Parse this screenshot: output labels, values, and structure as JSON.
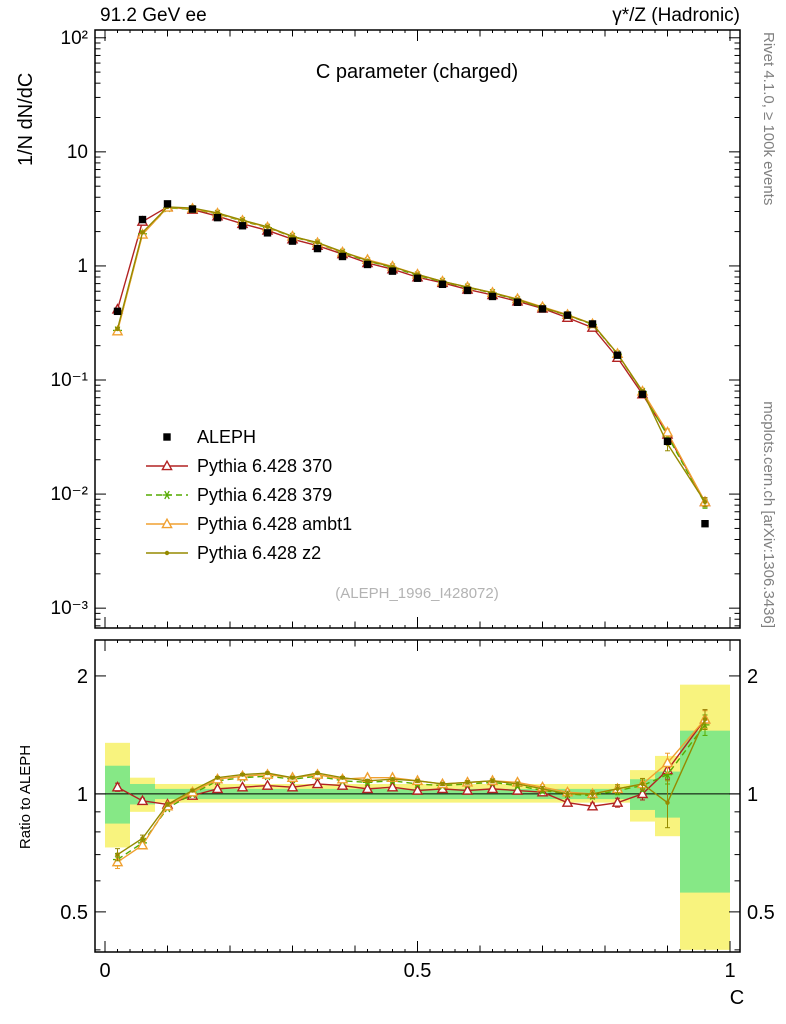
{
  "page": {
    "header_left": "91.2 GeV ee",
    "header_right": "γ*/Z (Hadronic)",
    "right_label_top": "Rivet 4.1.0, ≥ 100k events",
    "right_label_bottom": "mcplots.cern.ch [arXiv:1306.3436]",
    "watermark": "(ALEPH_1996_I428072)"
  },
  "chart_data": {
    "type": "line",
    "title": "C parameter (charged)",
    "xlabel": "C",
    "ylabel_top": "1/N  dN/dC",
    "ylabel_bottom": "Ratio to ALEPH",
    "xlim": [
      -0.016,
      1.016
    ],
    "ylim_top": [
      0.00067,
      117
    ],
    "ylim_bottom": [
      0.395,
      2.47
    ],
    "x_ticks": [
      0,
      0.5,
      1
    ],
    "x_tick_labels": [
      "0",
      "0.5",
      "1"
    ],
    "y_ticks_top": [
      100,
      10,
      1,
      0.1,
      0.01,
      0.001
    ],
    "y_tick_labels_top": [
      "10²",
      "10",
      "1",
      "10⁻¹",
      "10⁻²",
      "10⁻³"
    ],
    "y_ticks_bottom": [
      2,
      1,
      0.5
    ],
    "y_tick_labels_bottom": [
      "2",
      "1",
      "0.5"
    ],
    "colors": {
      "band_yellow": "#f8f37e",
      "band_green": "#86e886",
      "reference_line": "#000000",
      "frame": "#000000"
    },
    "x": [
      0.02,
      0.06,
      0.1,
      0.14,
      0.18,
      0.22,
      0.26,
      0.3,
      0.34,
      0.38,
      0.42,
      0.46,
      0.5,
      0.54,
      0.58,
      0.62,
      0.66,
      0.7,
      0.74,
      0.78,
      0.82,
      0.86,
      0.9,
      0.96
    ],
    "series": [
      {
        "id": "aleph",
        "label": "ALEPH",
        "color": "#000000",
        "marker": "square",
        "line": null,
        "values": [
          0.4,
          2.55,
          3.5,
          3.15,
          2.65,
          2.25,
          1.95,
          1.65,
          1.42,
          1.21,
          1.03,
          0.9,
          0.78,
          0.69,
          0.61,
          0.54,
          0.48,
          0.42,
          0.37,
          0.31,
          0.165,
          0.075,
          0.029,
          0.0055
        ],
        "ratio": null,
        "ratio_err": null
      },
      {
        "id": "pythia-370",
        "label": "Pythia 6.428 370",
        "color": "#b22222",
        "marker": "triangle",
        "line": "solid",
        "values": null,
        "ratio": [
          1.04,
          0.96,
          0.94,
          0.99,
          1.03,
          1.04,
          1.05,
          1.04,
          1.06,
          1.05,
          1.03,
          1.04,
          1.02,
          1.03,
          1.02,
          1.03,
          1.02,
          1.01,
          0.95,
          0.93,
          0.95,
          1.0,
          1.15,
          1.55
        ],
        "ratio_err": [
          0.025,
          0.015,
          0.01,
          0.008,
          0.008,
          0.008,
          0.008,
          0.008,
          0.008,
          0.008,
          0.009,
          0.009,
          0.01,
          0.01,
          0.011,
          0.012,
          0.013,
          0.015,
          0.016,
          0.018,
          0.025,
          0.035,
          0.06,
          0.09
        ]
      },
      {
        "id": "pythia-379",
        "label": "Pythia 6.428 379",
        "color": "#55aa00",
        "marker": "star",
        "line": "dashed",
        "values": null,
        "ratio": [
          0.68,
          0.75,
          0.92,
          1.0,
          1.08,
          1.1,
          1.11,
          1.09,
          1.11,
          1.08,
          1.07,
          1.08,
          1.06,
          1.05,
          1.06,
          1.07,
          1.05,
          1.02,
          1.0,
          0.99,
          1.02,
          1.05,
          1.12,
          1.5
        ],
        "ratio_err": [
          0.025,
          0.015,
          0.01,
          0.008,
          0.008,
          0.008,
          0.008,
          0.008,
          0.008,
          0.008,
          0.009,
          0.009,
          0.01,
          0.01,
          0.011,
          0.012,
          0.013,
          0.015,
          0.016,
          0.018,
          0.025,
          0.035,
          0.06,
          0.09
        ]
      },
      {
        "id": "pythia-ambt1",
        "label": "Pythia 6.428 ambt1",
        "color": "#f0a030",
        "marker": "triangle",
        "line": "solid",
        "values": null,
        "ratio": [
          0.67,
          0.74,
          0.93,
          1.01,
          1.09,
          1.11,
          1.12,
          1.1,
          1.12,
          1.09,
          1.1,
          1.1,
          1.08,
          1.06,
          1.07,
          1.08,
          1.07,
          1.04,
          1.01,
          1.0,
          1.03,
          1.06,
          1.2,
          1.55
        ],
        "ratio_err": [
          0.025,
          0.015,
          0.01,
          0.008,
          0.008,
          0.008,
          0.008,
          0.008,
          0.008,
          0.008,
          0.009,
          0.009,
          0.01,
          0.01,
          0.011,
          0.012,
          0.013,
          0.015,
          0.016,
          0.018,
          0.025,
          0.035,
          0.07,
          0.08
        ]
      },
      {
        "id": "pythia-z2",
        "label": "Pythia 6.428 z2",
        "color": "#958a00",
        "marker": "dot",
        "line": "solid",
        "values": null,
        "ratio": [
          0.7,
          0.77,
          0.94,
          1.02,
          1.1,
          1.12,
          1.13,
          1.1,
          1.13,
          1.1,
          1.08,
          1.09,
          1.08,
          1.06,
          1.07,
          1.08,
          1.06,
          1.03,
          1.0,
          1.0,
          1.03,
          1.06,
          0.95,
          1.55
        ],
        "ratio_err": [
          0.025,
          0.015,
          0.01,
          0.008,
          0.008,
          0.008,
          0.008,
          0.008,
          0.008,
          0.008,
          0.009,
          0.009,
          0.01,
          0.01,
          0.011,
          0.012,
          0.013,
          0.015,
          0.016,
          0.018,
          0.025,
          0.035,
          0.13,
          0.09
        ]
      }
    ],
    "bands": {
      "yellow": [
        {
          "x0": 0.0,
          "x1": 0.04,
          "lo": 0.73,
          "hi": 1.35
        },
        {
          "x0": 0.04,
          "x1": 0.08,
          "lo": 0.9,
          "hi": 1.1
        },
        {
          "x0": 0.08,
          "x1": 0.84,
          "lo": 0.95,
          "hi": 1.06
        },
        {
          "x0": 0.84,
          "x1": 0.88,
          "lo": 0.85,
          "hi": 1.15
        },
        {
          "x0": 0.88,
          "x1": 0.92,
          "lo": 0.78,
          "hi": 1.25
        },
        {
          "x0": 0.92,
          "x1": 1.0,
          "lo": 0.4,
          "hi": 1.9
        }
      ],
      "green": [
        {
          "x0": 0.0,
          "x1": 0.04,
          "lo": 0.84,
          "hi": 1.18
        },
        {
          "x0": 0.04,
          "x1": 0.08,
          "lo": 0.94,
          "hi": 1.06
        },
        {
          "x0": 0.08,
          "x1": 0.84,
          "lo": 0.97,
          "hi": 1.03
        },
        {
          "x0": 0.84,
          "x1": 0.88,
          "lo": 0.91,
          "hi": 1.09
        },
        {
          "x0": 0.88,
          "x1": 0.92,
          "lo": 0.87,
          "hi": 1.14
        },
        {
          "x0": 0.92,
          "x1": 1.0,
          "lo": 0.56,
          "hi": 1.45
        }
      ]
    }
  }
}
